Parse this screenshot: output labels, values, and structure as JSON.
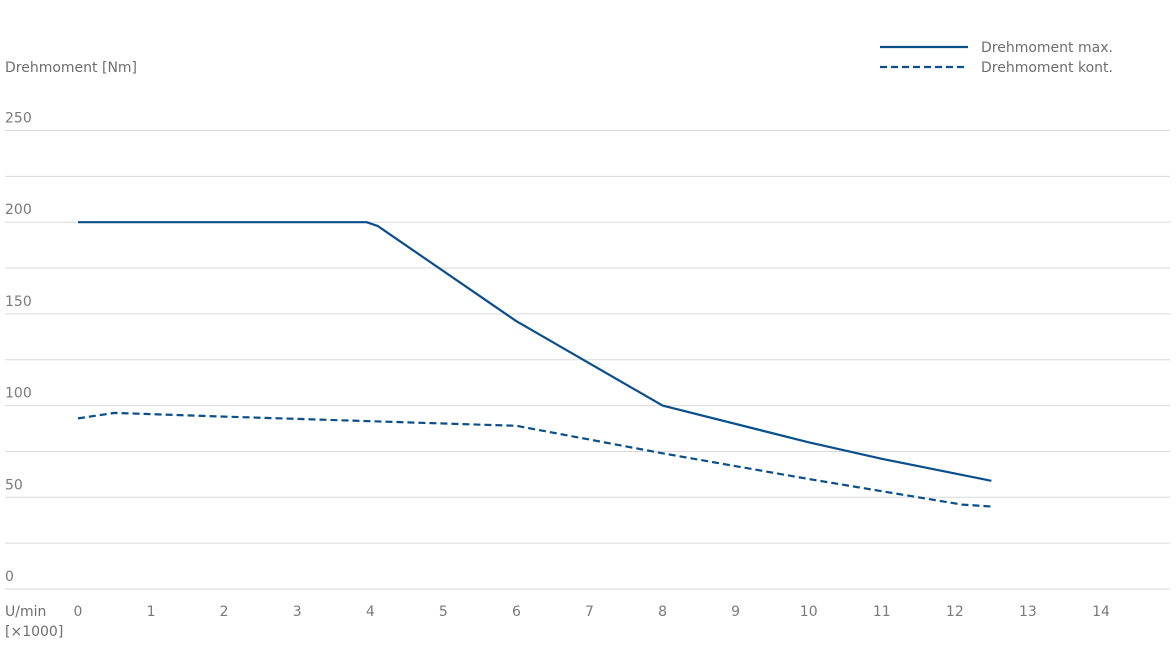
{
  "chart_data": {
    "type": "line",
    "ylabel": "Drehmoment [Nm]",
    "xlabel": [
      "U/min",
      "[×1000]"
    ],
    "x_ticks": [
      "0",
      "1",
      "2",
      "3",
      "4",
      "5",
      "6",
      "7",
      "8",
      "9",
      "10",
      "11",
      "12",
      "13",
      "14"
    ],
    "y_ticks": [
      "0",
      "50",
      "100",
      "150",
      "200",
      "250"
    ],
    "xlim": [
      0,
      15
    ],
    "ylim": [
      0,
      250
    ],
    "y_minor_step": 25,
    "grid": "horizontal",
    "legend_position": "top-right",
    "series": [
      {
        "name": "Drehmoment max.",
        "style": "solid",
        "color": "#0b4f8a",
        "points": [
          [
            0,
            200
          ],
          [
            3.95,
            200
          ],
          [
            4.1,
            198
          ],
          [
            6,
            146
          ],
          [
            8,
            100
          ],
          [
            10,
            80
          ],
          [
            11,
            71
          ],
          [
            12.5,
            59
          ]
        ]
      },
      {
        "name": "Drehmoment kont.",
        "style": "dashed",
        "color": "#0b4f8a",
        "points": [
          [
            0,
            93
          ],
          [
            0.5,
            96
          ],
          [
            2,
            94
          ],
          [
            4,
            91.5
          ],
          [
            6,
            89
          ],
          [
            8,
            74
          ],
          [
            10,
            60
          ],
          [
            11.5,
            50
          ],
          [
            12.1,
            46
          ],
          [
            12.5,
            45
          ]
        ]
      }
    ]
  }
}
